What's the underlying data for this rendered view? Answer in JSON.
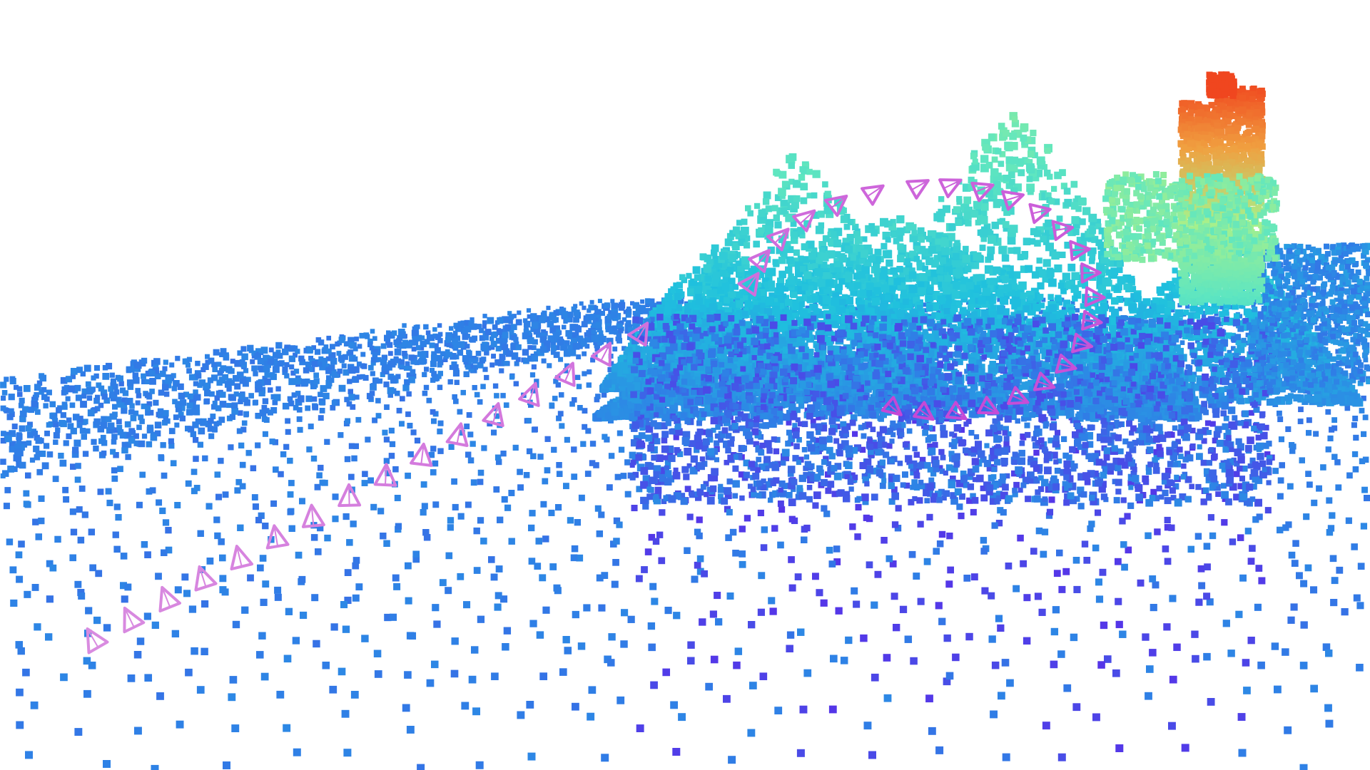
{
  "scene": {
    "type": "3d-point-cloud-voxel-render",
    "background": "#ffffff",
    "colormap": "rainbow-height",
    "colormap_stops": [
      "#5a2be8",
      "#2f7fe6",
      "#1fc0de",
      "#5fe6c0",
      "#a8f08a",
      "#f0a040",
      "#f03a1a"
    ],
    "camera_frustum_color_near": "#d98be0",
    "camera_frustum_color_far": "#c447d6",
    "camera_frustum_count": 40
  }
}
